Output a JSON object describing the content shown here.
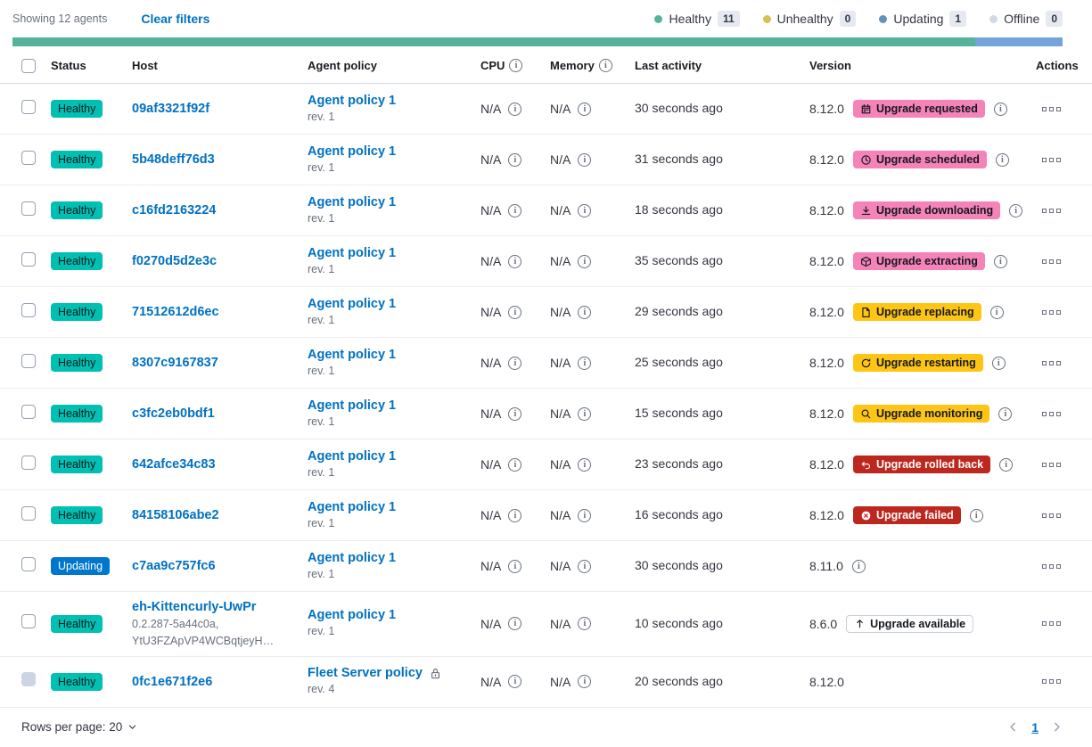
{
  "toolbar": {
    "showing_text": "Showing 12 agents",
    "clear_filters_label": "Clear filters",
    "legend": [
      {
        "label": "Healthy",
        "count": "11",
        "color": "#54B399"
      },
      {
        "label": "Unhealthy",
        "count": "0",
        "color": "#D6BF57"
      },
      {
        "label": "Updating",
        "count": "1",
        "color": "#6092C0"
      },
      {
        "label": "Offline",
        "count": "0",
        "color": "#D3DAE6"
      }
    ]
  },
  "status_bar": {
    "segments": [
      {
        "status": "healthy",
        "color": "#54B399",
        "fraction": 0.9167
      },
      {
        "status": "updating",
        "color": "#74A3DC",
        "fraction": 0.0833
      }
    ]
  },
  "table": {
    "columns": [
      {
        "key": "select",
        "label": ""
      },
      {
        "key": "status",
        "label": "Status"
      },
      {
        "key": "host",
        "label": "Host"
      },
      {
        "key": "policy",
        "label": "Agent policy"
      },
      {
        "key": "cpu",
        "label": "CPU",
        "info_icon": true
      },
      {
        "key": "memory",
        "label": "Memory",
        "info_icon": true
      },
      {
        "key": "last_activity",
        "label": "Last activity"
      },
      {
        "key": "version",
        "label": "Version"
      },
      {
        "key": "actions",
        "label": "Actions"
      }
    ],
    "rows": [
      {
        "status": {
          "label": "Healthy",
          "variant": "success"
        },
        "host": {
          "name": "09af3321f92f"
        },
        "policy": {
          "name": "Agent policy 1",
          "revision": "rev. 1",
          "locked": false
        },
        "cpu": "N/A",
        "memory": "N/A",
        "last_activity": "30 seconds ago",
        "version": "8.12.0",
        "upgrade_badge": {
          "label": "Upgrade requested",
          "icon": "calendar-icon",
          "variant": "accent"
        },
        "version_info_icon": true,
        "checkbox_disabled": false
      },
      {
        "status": {
          "label": "Healthy",
          "variant": "success"
        },
        "host": {
          "name": "5b48deff76d3"
        },
        "policy": {
          "name": "Agent policy 1",
          "revision": "rev. 1",
          "locked": false
        },
        "cpu": "N/A",
        "memory": "N/A",
        "last_activity": "31 seconds ago",
        "version": "8.12.0",
        "upgrade_badge": {
          "label": "Upgrade scheduled",
          "icon": "clock-icon",
          "variant": "accent"
        },
        "version_info_icon": true,
        "checkbox_disabled": false
      },
      {
        "status": {
          "label": "Healthy",
          "variant": "success"
        },
        "host": {
          "name": "c16fd2163224"
        },
        "policy": {
          "name": "Agent policy 1",
          "revision": "rev. 1",
          "locked": false
        },
        "cpu": "N/A",
        "memory": "N/A",
        "last_activity": "18 seconds ago",
        "version": "8.12.0",
        "upgrade_badge": {
          "label": "Upgrade downloading",
          "icon": "download-icon",
          "variant": "accent"
        },
        "version_info_icon": true,
        "checkbox_disabled": false
      },
      {
        "status": {
          "label": "Healthy",
          "variant": "success"
        },
        "host": {
          "name": "f0270d5d2e3c"
        },
        "policy": {
          "name": "Agent policy 1",
          "revision": "rev. 1",
          "locked": false
        },
        "cpu": "N/A",
        "memory": "N/A",
        "last_activity": "35 seconds ago",
        "version": "8.12.0",
        "upgrade_badge": {
          "label": "Upgrade extracting",
          "icon": "package-icon",
          "variant": "accent"
        },
        "version_info_icon": true,
        "checkbox_disabled": false
      },
      {
        "status": {
          "label": "Healthy",
          "variant": "success"
        },
        "host": {
          "name": "71512612d6ec"
        },
        "policy": {
          "name": "Agent policy 1",
          "revision": "rev. 1",
          "locked": false
        },
        "cpu": "N/A",
        "memory": "N/A",
        "last_activity": "29 seconds ago",
        "version": "8.12.0",
        "upgrade_badge": {
          "label": "Upgrade replacing",
          "icon": "document-icon",
          "variant": "warning"
        },
        "version_info_icon": true,
        "checkbox_disabled": false
      },
      {
        "status": {
          "label": "Healthy",
          "variant": "success"
        },
        "host": {
          "name": "8307c9167837"
        },
        "policy": {
          "name": "Agent policy 1",
          "revision": "rev. 1",
          "locked": false
        },
        "cpu": "N/A",
        "memory": "N/A",
        "last_activity": "25 seconds ago",
        "version": "8.12.0",
        "upgrade_badge": {
          "label": "Upgrade restarting",
          "icon": "refresh-icon",
          "variant": "warning"
        },
        "version_info_icon": true,
        "checkbox_disabled": false
      },
      {
        "status": {
          "label": "Healthy",
          "variant": "success"
        },
        "host": {
          "name": "c3fc2eb0bdf1"
        },
        "policy": {
          "name": "Agent policy 1",
          "revision": "rev. 1",
          "locked": false
        },
        "cpu": "N/A",
        "memory": "N/A",
        "last_activity": "15 seconds ago",
        "version": "8.12.0",
        "upgrade_badge": {
          "label": "Upgrade monitoring",
          "icon": "inspect-icon",
          "variant": "warning"
        },
        "version_info_icon": true,
        "checkbox_disabled": false
      },
      {
        "status": {
          "label": "Healthy",
          "variant": "success"
        },
        "host": {
          "name": "642afce34c83"
        },
        "policy": {
          "name": "Agent policy 1",
          "revision": "rev. 1",
          "locked": false
        },
        "cpu": "N/A",
        "memory": "N/A",
        "last_activity": "23 seconds ago",
        "version": "8.12.0",
        "upgrade_badge": {
          "label": "Upgrade rolled back",
          "icon": "return-arrow-icon",
          "variant": "danger"
        },
        "version_info_icon": true,
        "checkbox_disabled": false
      },
      {
        "status": {
          "label": "Healthy",
          "variant": "success"
        },
        "host": {
          "name": "84158106abe2"
        },
        "policy": {
          "name": "Agent policy 1",
          "revision": "rev. 1",
          "locked": false
        },
        "cpu": "N/A",
        "memory": "N/A",
        "last_activity": "16 seconds ago",
        "version": "8.12.0",
        "upgrade_badge": {
          "label": "Upgrade failed",
          "icon": "error-circle-icon",
          "variant": "danger"
        },
        "version_info_icon": true,
        "checkbox_disabled": false
      },
      {
        "status": {
          "label": "Updating",
          "variant": "primary"
        },
        "host": {
          "name": "c7aa9c757fc6"
        },
        "policy": {
          "name": "Agent policy 1",
          "revision": "rev. 1",
          "locked": false
        },
        "cpu": "N/A",
        "memory": "N/A",
        "last_activity": "30 seconds ago",
        "version": "8.11.0",
        "upgrade_badge": null,
        "version_info_icon": true,
        "checkbox_disabled": false
      },
      {
        "status": {
          "label": "Healthy",
          "variant": "success"
        },
        "host": {
          "name": "eh-Kittencurly-UwPr",
          "sub_lines": [
            "0.2.287-5a44c0a,",
            "YtU3FZApVP4WCBqtjeyH…"
          ]
        },
        "policy": {
          "name": "Agent policy 1",
          "revision": "rev. 1",
          "locked": false
        },
        "cpu": "N/A",
        "memory": "N/A",
        "last_activity": "10 seconds ago",
        "version": "8.6.0",
        "upgrade_badge": {
          "label": "Upgrade available",
          "icon": "arrow-up-icon",
          "variant": "hollow"
        },
        "version_info_icon": false,
        "checkbox_disabled": false
      },
      {
        "status": {
          "label": "Healthy",
          "variant": "success"
        },
        "host": {
          "name": "0fc1e671f2e6"
        },
        "policy": {
          "name": "Fleet Server policy",
          "revision": "rev. 4",
          "locked": true
        },
        "cpu": "N/A",
        "memory": "N/A",
        "last_activity": "20 seconds ago",
        "version": "8.12.0",
        "upgrade_badge": null,
        "version_info_icon": false,
        "checkbox_disabled": true
      }
    ]
  },
  "footer": {
    "rows_per_page_label": "Rows per page: 20",
    "pagination": {
      "current_page": "1"
    }
  }
}
